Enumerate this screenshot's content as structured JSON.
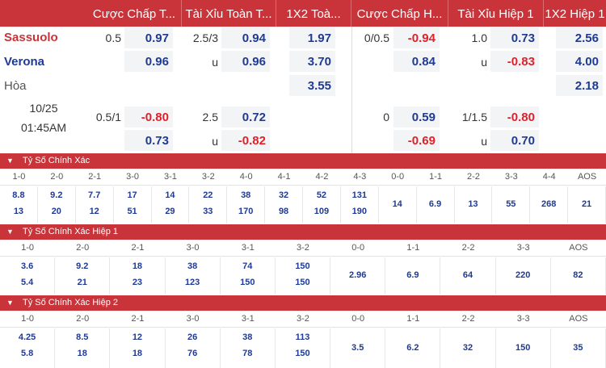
{
  "headers": [
    "Cược Chấp T...",
    "Tài Xỉu Toàn T...",
    "1X2 Toà...",
    "Cược Chấp H...",
    "Tài Xỉu Hiệp 1",
    "1X2 Hiệp 1"
  ],
  "teams": {
    "home": "Sassuolo",
    "away": "Verona",
    "draw": "Hòa"
  },
  "match": {
    "date": "10/25",
    "time": "01:45AM"
  },
  "line1": {
    "ft_hcap": "0.5",
    "ft_home": "0.97",
    "ft_away": "0.96",
    "ft_ou": "2.5/3",
    "ft_over": "0.94",
    "ft_u": "u",
    "ft_under": "0.96",
    "x12_home": "1.97",
    "x12_away": "3.70",
    "x12_draw": "3.55",
    "h1_hcap": "0/0.5",
    "h1_home": "-0.94",
    "h1_away": "0.84",
    "h1_ou": "1.0",
    "h1_over": "0.73",
    "h1_u": "u",
    "h1_under": "-0.83",
    "h1x12_home": "2.56",
    "h1x12_away": "4.00",
    "h1x12_draw": "2.18"
  },
  "line2": {
    "ft_hcap": "0.5/1",
    "ft_home": "-0.80",
    "ft_away": "0.73",
    "ft_ou": "2.5",
    "ft_over": "0.72",
    "ft_u": "u",
    "ft_under": "-0.82",
    "h1_hcap": "0",
    "h1_home": "0.59",
    "h1_away": "-0.69",
    "h1_ou": "1/1.5",
    "h1_over": "-0.80",
    "h1_u": "u",
    "h1_under": "0.70"
  },
  "exact_score": {
    "title": "Tỷ Số Chính Xác",
    "scores": [
      "1-0",
      "2-0",
      "2-1",
      "3-0",
      "3-1",
      "3-2",
      "4-0",
      "4-1",
      "4-2",
      "4-3",
      "0-0",
      "1-1",
      "2-2",
      "3-3",
      "4-4",
      "AOS"
    ],
    "home": [
      "8.8",
      "9.2",
      "7.7",
      "17",
      "14",
      "22",
      "38",
      "32",
      "52",
      "131",
      "14",
      "6.9",
      "13",
      "55",
      "268",
      "21"
    ],
    "away": [
      "13",
      "20",
      "12",
      "51",
      "29",
      "33",
      "170",
      "98",
      "109",
      "190",
      "",
      "",
      "",
      "",
      "",
      ""
    ]
  },
  "exact_score_h1": {
    "title": "Tỷ Số Chính Xác Hiệp 1",
    "scores": [
      "1-0",
      "2-0",
      "2-1",
      "3-0",
      "3-1",
      "3-2",
      "0-0",
      "1-1",
      "2-2",
      "3-3",
      "AOS"
    ],
    "home": [
      "3.6",
      "9.2",
      "18",
      "38",
      "74",
      "150",
      "2.96",
      "6.9",
      "64",
      "220",
      "82"
    ],
    "away": [
      "5.4",
      "21",
      "23",
      "123",
      "150",
      "150",
      "",
      "",
      "",
      "",
      ""
    ]
  },
  "exact_score_h2": {
    "title": "Tỷ Số Chính Xác Hiệp 2",
    "scores": [
      "1-0",
      "2-0",
      "2-1",
      "3-0",
      "3-1",
      "3-2",
      "0-0",
      "1-1",
      "2-2",
      "3-3",
      "AOS"
    ],
    "home": [
      "4.25",
      "8.5",
      "12",
      "26",
      "38",
      "113",
      "3.5",
      "6.2",
      "32",
      "150",
      "35"
    ],
    "away": [
      "5.8",
      "18",
      "18",
      "76",
      "78",
      "150",
      "",
      "",
      "",
      "",
      ""
    ]
  },
  "colors": {
    "header": "#c8343a",
    "blue": "#1f3a93",
    "red": "#e0202a",
    "box": "#f3f4f6"
  },
  "icons": {
    "band_toggle": "chevron-down-icon"
  }
}
